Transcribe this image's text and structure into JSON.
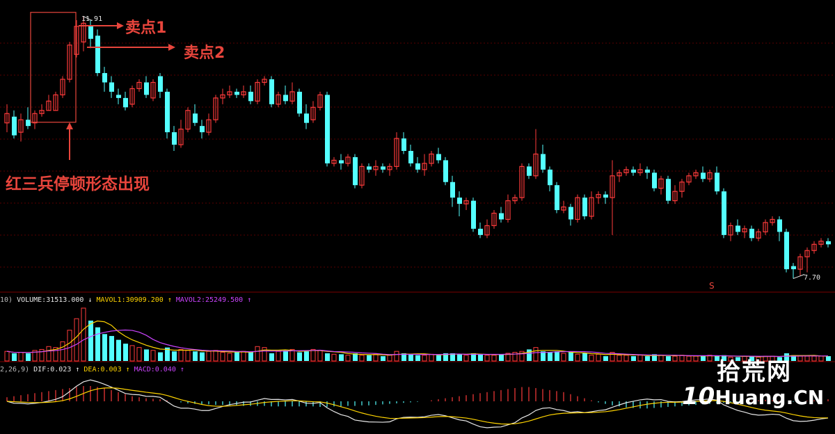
{
  "annotations": {
    "sell1": "卖点1",
    "sell2": "卖点2",
    "pattern": "红三兵停顿形态出现",
    "high_price": "11.91",
    "low_price": "7.70",
    "s_marker": "S"
  },
  "volume_panel": {
    "prefix": "10)",
    "volume_label": "VOLUME:31513.000",
    "volume_arrow": "↓",
    "mavol1_label": "MAVOL1:30909.200",
    "mavol1_arrow": "↑",
    "mavol2_label": "MAVOL2:25249.500",
    "mavol2_arrow": "↑"
  },
  "macd_panel": {
    "prefix": "2,26,9)",
    "dif_label": "DIF:0.023",
    "dif_arrow": "↑",
    "dea_label": "DEA:0.003",
    "dea_arrow": "↑",
    "macd_label": "MACD:0.040",
    "macd_arrow": "↑"
  },
  "watermark": {
    "cn": "拾荒网",
    "en_prefix": "10",
    "en_suffix": "Huang.CN"
  },
  "colors": {
    "up": "#ff3b3b",
    "down": "#54ffff",
    "annotation": "#e8453c",
    "mavol1": "#ffd400",
    "mavol2": "#cc44ff",
    "dif": "#e8e8e8",
    "dea": "#ffd400",
    "grid": "#5a0000"
  },
  "chart_data": {
    "type": "candlestick",
    "price_high": 11.91,
    "price_low": 7.7,
    "candles": [
      [
        10.2,
        10.35,
        10.5,
        10.05
      ],
      [
        10.3,
        10.0,
        10.4,
        9.95
      ],
      [
        10.05,
        10.25,
        10.35,
        9.9
      ],
      [
        10.25,
        10.15,
        10.45,
        10.1
      ],
      [
        10.2,
        10.35,
        10.4,
        10.1
      ],
      [
        10.35,
        10.4,
        10.5,
        10.3
      ],
      [
        10.4,
        10.55,
        10.65,
        10.4
      ],
      [
        10.4,
        10.65,
        10.7,
        10.4
      ],
      [
        10.65,
        10.9,
        10.95,
        10.6
      ],
      [
        10.9,
        11.45,
        11.5,
        10.85
      ],
      [
        11.3,
        11.75,
        11.85,
        11.25
      ],
      [
        11.5,
        11.8,
        11.91,
        11.35
      ],
      [
        11.75,
        11.55,
        11.85,
        11.4
      ],
      [
        11.6,
        11.0,
        11.7,
        10.95
      ],
      [
        11.0,
        10.85,
        11.1,
        10.7
      ],
      [
        10.85,
        10.7,
        10.95,
        10.6
      ],
      [
        10.65,
        10.6,
        10.75,
        10.5
      ],
      [
        10.6,
        10.45,
        10.7,
        10.4
      ],
      [
        10.5,
        10.75,
        10.8,
        10.45
      ],
      [
        10.75,
        10.85,
        10.9,
        10.7
      ],
      [
        10.85,
        10.65,
        10.95,
        10.6
      ],
      [
        10.6,
        10.85,
        10.9,
        10.55
      ],
      [
        10.95,
        10.7,
        11.0,
        10.6
      ],
      [
        10.7,
        10.05,
        10.75,
        9.95
      ],
      [
        10.05,
        9.85,
        10.15,
        9.75
      ],
      [
        9.85,
        10.1,
        10.25,
        9.8
      ],
      [
        10.1,
        10.4,
        10.45,
        10.05
      ],
      [
        10.35,
        10.2,
        10.5,
        10.15
      ],
      [
        10.15,
        10.05,
        10.25,
        9.95
      ],
      [
        10.05,
        10.25,
        10.35,
        10.0
      ],
      [
        10.25,
        10.6,
        10.65,
        10.2
      ],
      [
        10.6,
        10.65,
        10.75,
        10.5
      ],
      [
        10.65,
        10.7,
        10.8,
        10.6
      ],
      [
        10.7,
        10.65,
        10.75,
        10.6
      ],
      [
        10.65,
        10.7,
        10.8,
        10.6
      ],
      [
        10.7,
        10.55,
        10.8,
        10.5
      ],
      [
        10.55,
        10.85,
        10.9,
        10.5
      ],
      [
        10.85,
        10.9,
        10.95,
        10.8
      ],
      [
        10.9,
        10.5,
        10.95,
        10.45
      ],
      [
        10.5,
        10.65,
        10.7,
        10.45
      ],
      [
        10.65,
        10.55,
        10.8,
        10.5
      ],
      [
        10.55,
        10.7,
        10.85,
        10.5
      ],
      [
        10.7,
        10.35,
        10.75,
        10.3
      ],
      [
        10.35,
        10.2,
        10.5,
        10.1
      ],
      [
        10.25,
        10.45,
        10.55,
        10.2
      ],
      [
        10.45,
        10.65,
        10.7,
        10.4
      ],
      [
        10.65,
        9.55,
        10.7,
        9.5
      ],
      [
        9.55,
        9.6,
        9.65,
        9.5
      ],
      [
        9.6,
        9.55,
        9.7,
        9.45
      ],
      [
        9.55,
        9.65,
        9.7,
        9.5
      ],
      [
        9.65,
        9.2,
        9.7,
        9.15
      ],
      [
        9.2,
        9.5,
        9.55,
        9.15
      ],
      [
        9.5,
        9.45,
        9.55,
        9.4
      ],
      [
        9.45,
        9.5,
        9.6,
        9.35
      ],
      [
        9.5,
        9.45,
        9.55,
        9.4
      ],
      [
        9.45,
        9.5,
        9.55,
        9.35
      ],
      [
        9.5,
        9.95,
        10.05,
        9.45
      ],
      [
        9.95,
        9.75,
        10.05,
        9.7
      ],
      [
        9.75,
        9.55,
        9.85,
        9.5
      ],
      [
        9.55,
        9.45,
        9.65,
        9.4
      ],
      [
        9.45,
        9.55,
        9.7,
        9.35
      ],
      [
        9.55,
        9.7,
        9.75,
        9.5
      ],
      [
        9.7,
        9.6,
        9.8,
        9.55
      ],
      [
        9.6,
        9.25,
        9.65,
        9.2
      ],
      [
        9.25,
        9.0,
        9.35,
        8.85
      ],
      [
        9.0,
        8.9,
        9.1,
        8.7
      ],
      [
        8.9,
        8.95,
        9.0,
        8.8
      ],
      [
        8.95,
        8.5,
        9.0,
        8.45
      ],
      [
        8.5,
        8.4,
        8.6,
        8.35
      ],
      [
        8.4,
        8.55,
        8.65,
        8.35
      ],
      [
        8.55,
        8.75,
        8.8,
        8.5
      ],
      [
        8.75,
        8.65,
        8.85,
        8.6
      ],
      [
        8.65,
        8.95,
        9.05,
        8.6
      ],
      [
        8.95,
        9.0,
        9.05,
        8.9
      ],
      [
        9.0,
        9.5,
        9.55,
        8.95
      ],
      [
        9.5,
        9.35,
        9.55,
        9.3
      ],
      [
        9.35,
        9.7,
        10.1,
        9.3
      ],
      [
        9.7,
        9.45,
        9.85,
        9.4
      ],
      [
        9.45,
        9.2,
        9.5,
        9.1
      ],
      [
        9.2,
        8.8,
        9.25,
        8.75
      ],
      [
        8.8,
        8.85,
        8.95,
        8.75
      ],
      [
        8.85,
        8.65,
        8.9,
        8.55
      ],
      [
        8.65,
        9.0,
        9.05,
        8.6
      ],
      [
        9.0,
        8.7,
        9.05,
        8.65
      ],
      [
        8.7,
        9.0,
        9.1,
        8.65
      ],
      [
        9.0,
        9.05,
        9.1,
        8.9
      ],
      [
        9.05,
        9.0,
        9.1,
        8.9
      ],
      [
        9.0,
        9.35,
        9.6,
        8.4
      ],
      [
        9.35,
        9.4,
        9.45,
        9.25
      ],
      [
        9.4,
        9.45,
        9.5,
        9.35
      ],
      [
        9.45,
        9.4,
        9.5,
        9.35
      ],
      [
        9.4,
        9.45,
        9.55,
        9.35
      ],
      [
        9.45,
        9.4,
        9.5,
        9.3
      ],
      [
        9.4,
        9.15,
        9.45,
        9.1
      ],
      [
        9.15,
        9.3,
        9.35,
        9.05
      ],
      [
        9.3,
        8.95,
        9.35,
        8.9
      ],
      [
        8.95,
        9.1,
        9.2,
        8.9
      ],
      [
        9.1,
        9.25,
        9.3,
        9.0
      ],
      [
        9.25,
        9.35,
        9.4,
        9.2
      ],
      [
        9.35,
        9.4,
        9.45,
        9.3
      ],
      [
        9.4,
        9.3,
        9.5,
        9.25
      ],
      [
        9.3,
        9.4,
        9.45,
        9.25
      ],
      [
        9.4,
        9.1,
        9.5,
        9.05
      ],
      [
        9.1,
        8.4,
        9.15,
        8.35
      ],
      [
        8.4,
        8.55,
        8.6,
        8.3
      ],
      [
        8.55,
        8.45,
        8.65,
        8.4
      ],
      [
        8.45,
        8.5,
        8.55,
        8.35
      ],
      [
        8.5,
        8.35,
        8.55,
        8.3
      ],
      [
        8.35,
        8.45,
        8.5,
        8.3
      ],
      [
        8.45,
        8.6,
        8.65,
        8.4
      ],
      [
        8.6,
        8.65,
        8.7,
        8.55
      ],
      [
        8.65,
        8.45,
        8.7,
        8.3
      ],
      [
        8.45,
        7.85,
        8.5,
        7.8
      ],
      [
        7.9,
        7.85,
        7.95,
        7.7
      ],
      [
        7.85,
        8.05,
        8.1,
        7.75
      ],
      [
        8.05,
        8.15,
        8.2,
        7.8
      ],
      [
        8.15,
        8.25,
        8.3,
        8.1
      ],
      [
        8.25,
        8.3,
        8.35,
        8.2
      ],
      [
        8.3,
        8.25,
        8.35,
        8.2
      ]
    ],
    "volume": [
      10,
      8,
      9,
      8,
      11,
      12,
      15,
      14,
      20,
      32,
      44,
      55,
      42,
      35,
      28,
      26,
      22,
      18,
      16,
      14,
      12,
      11,
      9,
      14,
      10,
      12,
      11,
      10,
      9,
      10,
      11,
      9,
      8,
      9,
      10,
      9,
      15,
      14,
      8,
      10,
      11,
      12,
      9,
      10,
      12,
      11,
      8,
      7,
      7,
      6,
      8,
      6,
      6,
      7,
      5,
      6,
      10,
      8,
      7,
      6,
      6,
      7,
      6,
      8,
      8,
      7,
      6,
      8,
      7,
      6,
      6,
      7,
      8,
      9,
      10,
      12,
      14,
      10,
      9,
      10,
      8,
      9,
      7,
      8,
      6,
      7,
      5,
      9,
      6,
      6,
      5,
      6,
      5,
      7,
      6,
      5,
      5,
      6,
      5,
      5,
      5,
      6,
      5,
      6,
      4,
      4,
      5,
      5,
      4,
      5,
      5,
      4,
      8,
      6,
      5,
      5,
      5,
      5,
      5
    ],
    "macd_hist": [
      8,
      10,
      12,
      14,
      16,
      18,
      20,
      22,
      24,
      26,
      28,
      30,
      30,
      28,
      26,
      22,
      18,
      14,
      10,
      8,
      6,
      5,
      4,
      2,
      0,
      -2,
      -4,
      -5,
      -6,
      -6,
      -7,
      -7,
      -8,
      -8,
      -9,
      -9,
      -9,
      -9,
      -10,
      -10,
      -10,
      -10,
      -10,
      -10,
      -10,
      -11,
      -11,
      -10,
      -10,
      -9,
      -9,
      -8,
      -8,
      -7,
      -6,
      -5,
      -4,
      -3,
      -2,
      -1,
      0,
      2,
      4,
      6,
      8,
      10,
      12,
      14,
      16,
      18,
      20,
      22,
      24,
      26,
      28,
      28,
      26,
      24,
      22,
      20,
      18,
      14,
      10,
      6,
      2,
      -2,
      -5,
      -8,
      -10,
      -12,
      -13,
      -14,
      -14,
      -13,
      -12,
      -11,
      -10,
      -9,
      -8,
      -7,
      -6,
      -5,
      -4,
      -3,
      -2,
      -1,
      0,
      1,
      2,
      3,
      2,
      1,
      0,
      -1,
      0,
      1,
      2,
      3,
      4
    ]
  }
}
